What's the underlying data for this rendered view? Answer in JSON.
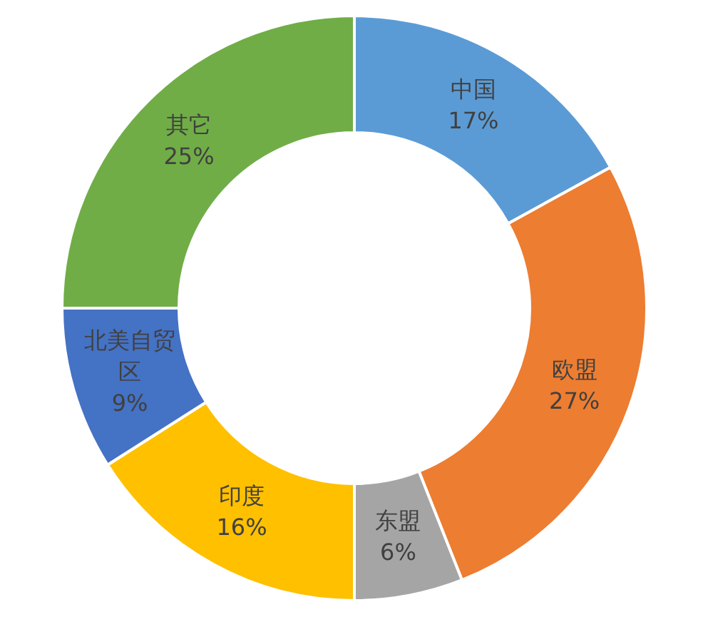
{
  "chart_data": {
    "type": "donut",
    "categories": [
      "中国",
      "欧盟",
      "东盟",
      "印度",
      "北美自贸区",
      "其它"
    ],
    "values": [
      17,
      27,
      6,
      16,
      9,
      25
    ],
    "colors": [
      "#5b9bd5",
      "#ed7d31",
      "#a5a5a5",
      "#ffc000",
      "#4472c4",
      "#70ad47"
    ],
    "value_labels": [
      "17%",
      "27%",
      "6%",
      "16%",
      "9%",
      "25%"
    ]
  }
}
